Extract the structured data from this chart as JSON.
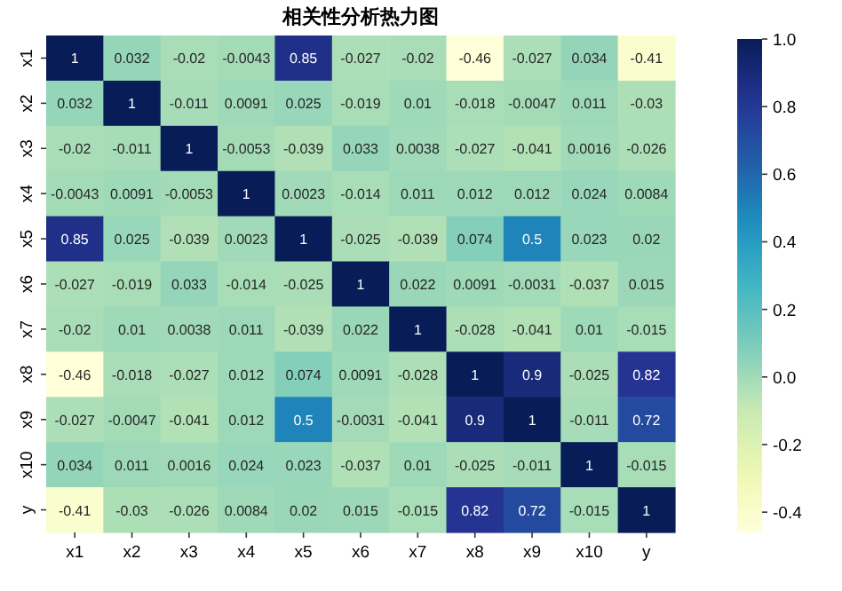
{
  "chart_data": {
    "type": "heatmap",
    "title": "相关性分析热力图",
    "categories": [
      "x1",
      "x2",
      "x3",
      "x4",
      "x5",
      "x6",
      "x7",
      "x8",
      "x9",
      "x10",
      "y"
    ],
    "y_categories": [
      "x1",
      "x2",
      "x3",
      "x4",
      "x5",
      "x6",
      "x7",
      "x8",
      "x9",
      "x10",
      "y"
    ],
    "cells": [
      [
        1,
        0.032,
        -0.02,
        -0.0043,
        0.85,
        -0.027,
        -0.02,
        -0.46,
        -0.027,
        0.034,
        -0.41
      ],
      [
        0.032,
        1,
        -0.011,
        0.0091,
        0.025,
        -0.019,
        0.01,
        -0.018,
        -0.0047,
        0.011,
        -0.03
      ],
      [
        -0.02,
        -0.011,
        1,
        -0.0053,
        -0.039,
        0.033,
        0.0038,
        -0.027,
        -0.041,
        0.0016,
        -0.026
      ],
      [
        -0.0043,
        0.0091,
        -0.0053,
        1,
        0.0023,
        -0.014,
        0.011,
        0.012,
        0.012,
        0.024,
        0.0084
      ],
      [
        0.85,
        0.025,
        -0.039,
        0.0023,
        1,
        -0.025,
        -0.039,
        0.074,
        0.5,
        0.023,
        0.02
      ],
      [
        -0.027,
        -0.019,
        0.033,
        -0.014,
        -0.025,
        1,
        0.022,
        0.0091,
        -0.0031,
        -0.037,
        0.015
      ],
      [
        -0.02,
        0.01,
        0.0038,
        0.011,
        -0.039,
        0.022,
        1,
        -0.028,
        -0.041,
        0.01,
        -0.015
      ],
      [
        -0.46,
        -0.018,
        -0.027,
        0.012,
        0.074,
        0.0091,
        -0.028,
        1,
        0.9,
        -0.025,
        0.82
      ],
      [
        -0.027,
        -0.0047,
        -0.041,
        0.012,
        0.5,
        -0.0031,
        -0.041,
        0.9,
        1,
        -0.011,
        0.72
      ],
      [
        0.034,
        0.011,
        0.0016,
        0.024,
        0.023,
        -0.037,
        0.01,
        -0.025,
        -0.011,
        1,
        -0.015
      ],
      [
        -0.41,
        -0.03,
        -0.026,
        0.0084,
        0.02,
        0.015,
        -0.015,
        0.82,
        0.72,
        -0.015,
        1
      ]
    ],
    "clim": [
      -0.46,
      1
    ],
    "cticks": [
      -0.4,
      -0.2,
      {
        "value": 0,
        "label": "0.0"
      },
      0.2,
      0.4,
      0.6,
      0.8,
      {
        "value": 1,
        "label": "1.0"
      }
    ],
    "data_labels": true
  }
}
